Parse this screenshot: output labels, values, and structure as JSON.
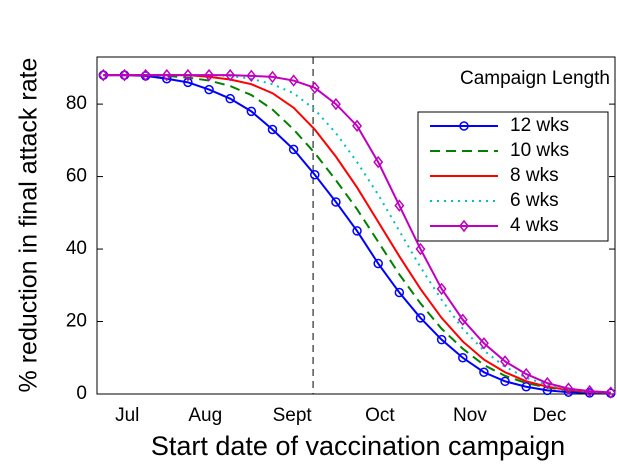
{
  "chart_data": {
    "type": "line",
    "x_label": "Start date of vaccination campaign",
    "y_label": "% reduction in final attack rate",
    "legend_title": "Campaign Length",
    "legend": "northeast",
    "grid": false,
    "x": [
      0,
      1,
      2,
      3,
      4,
      5,
      6,
      7,
      8,
      9,
      10,
      11,
      12,
      13,
      14,
      15,
      16,
      17,
      18,
      19,
      20,
      21,
      22,
      23,
      24
    ],
    "xlim": [
      -0.3,
      24.2
    ],
    "xticks": [
      {
        "value": 1.13,
        "label": "Jul"
      },
      {
        "value": 4.82,
        "label": "Aug"
      },
      {
        "value": 8.93,
        "label": "Sept"
      },
      {
        "value": 13.08,
        "label": "Oct"
      },
      {
        "value": 17.34,
        "label": "Nov"
      },
      {
        "value": 21.1,
        "label": "Dec"
      }
    ],
    "ylim": [
      0,
      93
    ],
    "yticks": [
      0,
      20,
      40,
      60,
      80
    ],
    "vline": 9.92,
    "series": [
      {
        "name": "12 wks",
        "color": "#0000ff",
        "dash": "solid",
        "marker": "circle",
        "values": [
          88,
          88,
          87.8,
          87,
          86,
          84,
          81.5,
          78,
          73,
          67.5,
          60.5,
          53,
          45,
          36,
          28,
          21,
          15,
          10,
          6,
          3.5,
          2,
          1,
          0.5,
          0.3,
          0.2
        ]
      },
      {
        "name": "10 wks",
        "color": "#008000",
        "dash": "dashed",
        "marker": "none",
        "values": [
          88,
          88,
          88,
          87.8,
          87.3,
          86.5,
          85,
          82.5,
          78.5,
          73,
          66.5,
          59,
          51,
          42,
          33,
          25,
          18,
          12.5,
          8,
          5,
          3,
          1.8,
          1,
          0.5,
          0.3
        ]
      },
      {
        "name": "8 wks",
        "color": "#ff0000",
        "dash": "solid",
        "marker": "none",
        "values": [
          88,
          88,
          88,
          88,
          88,
          87.5,
          86.8,
          85.5,
          83,
          79,
          73,
          65.5,
          57,
          47.5,
          38,
          29,
          21,
          14.5,
          9.5,
          6,
          3.5,
          2,
          1.1,
          0.6,
          0.3
        ]
      },
      {
        "name": "6 wks",
        "color": "#00bfbf",
        "dash": "dotted",
        "marker": "none",
        "values": [
          88,
          88,
          88,
          88,
          88,
          88,
          87.8,
          87,
          85.5,
          83,
          78.5,
          72,
          64,
          55,
          45,
          35,
          26,
          18,
          12,
          7.5,
          4.5,
          2.5,
          1.3,
          0.7,
          0.4
        ]
      },
      {
        "name": "4 wks",
        "color": "#bf00bf",
        "dash": "solid",
        "marker": "diamond",
        "values": [
          88,
          88,
          88,
          88,
          88,
          88,
          88,
          87.8,
          87.5,
          86.5,
          84.5,
          80,
          74,
          64,
          52,
          40,
          29,
          20.5,
          14,
          9,
          5.5,
          3,
          1.5,
          0.8,
          0.4
        ]
      }
    ]
  }
}
